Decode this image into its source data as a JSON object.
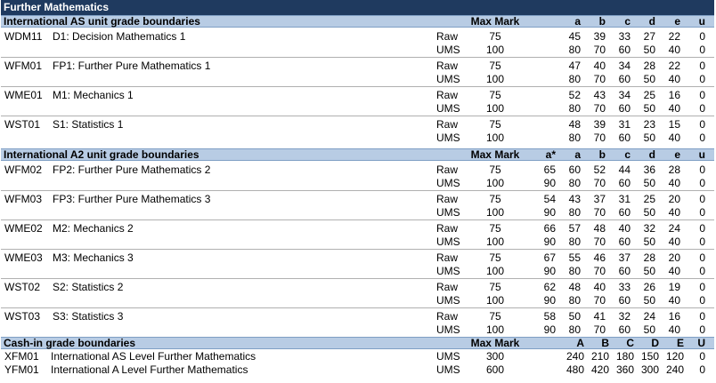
{
  "title": "Further Mathematics",
  "as_section": {
    "header": "International AS unit grade boundaries",
    "max_mark_label": "Max Mark",
    "grade_labels": [
      "a",
      "b",
      "c",
      "d",
      "e",
      "u"
    ],
    "units": [
      {
        "code": "WDM11",
        "name": "D1: Decision Mathematics 1",
        "raw": {
          "label": "Raw",
          "max": "75",
          "grades": [
            "45",
            "39",
            "33",
            "27",
            "22",
            "0"
          ]
        },
        "ums": {
          "label": "UMS",
          "max": "100",
          "grades": [
            "80",
            "70",
            "60",
            "50",
            "40",
            "0"
          ]
        }
      },
      {
        "code": "WFM01",
        "name": "FP1: Further Pure Mathematics 1",
        "raw": {
          "label": "Raw",
          "max": "75",
          "grades": [
            "47",
            "40",
            "34",
            "28",
            "22",
            "0"
          ]
        },
        "ums": {
          "label": "UMS",
          "max": "100",
          "grades": [
            "80",
            "70",
            "60",
            "50",
            "40",
            "0"
          ]
        }
      },
      {
        "code": "WME01",
        "name": "M1: Mechanics 1",
        "raw": {
          "label": "Raw",
          "max": "75",
          "grades": [
            "52",
            "43",
            "34",
            "25",
            "16",
            "0"
          ]
        },
        "ums": {
          "label": "UMS",
          "max": "100",
          "grades": [
            "80",
            "70",
            "60",
            "50",
            "40",
            "0"
          ]
        }
      },
      {
        "code": "WST01",
        "name": "S1: Statistics 1",
        "raw": {
          "label": "Raw",
          "max": "75",
          "grades": [
            "48",
            "39",
            "31",
            "23",
            "15",
            "0"
          ]
        },
        "ums": {
          "label": "UMS",
          "max": "100",
          "grades": [
            "80",
            "70",
            "60",
            "50",
            "40",
            "0"
          ]
        }
      }
    ]
  },
  "a2_section": {
    "header": "International A2 unit grade boundaries",
    "max_mark_label": "Max Mark",
    "grade_labels": [
      "a*",
      "a",
      "b",
      "c",
      "d",
      "e",
      "u"
    ],
    "units": [
      {
        "code": "WFM02",
        "name": "FP2: Further Pure Mathematics 2",
        "raw": {
          "label": "Raw",
          "max": "75",
          "grades": [
            "65",
            "60",
            "52",
            "44",
            "36",
            "28",
            "0"
          ]
        },
        "ums": {
          "label": "UMS",
          "max": "100",
          "grades": [
            "90",
            "80",
            "70",
            "60",
            "50",
            "40",
            "0"
          ]
        }
      },
      {
        "code": "WFM03",
        "name": "FP3: Further Pure Mathematics 3",
        "raw": {
          "label": "Raw",
          "max": "75",
          "grades": [
            "54",
            "43",
            "37",
            "31",
            "25",
            "20",
            "0"
          ]
        },
        "ums": {
          "label": "UMS",
          "max": "100",
          "grades": [
            "90",
            "80",
            "70",
            "60",
            "50",
            "40",
            "0"
          ]
        }
      },
      {
        "code": "WME02",
        "name": "M2: Mechanics 2",
        "raw": {
          "label": "Raw",
          "max": "75",
          "grades": [
            "66",
            "57",
            "48",
            "40",
            "32",
            "24",
            "0"
          ]
        },
        "ums": {
          "label": "UMS",
          "max": "100",
          "grades": [
            "90",
            "80",
            "70",
            "60",
            "50",
            "40",
            "0"
          ]
        }
      },
      {
        "code": "WME03",
        "name": "M3: Mechanics 3",
        "raw": {
          "label": "Raw",
          "max": "75",
          "grades": [
            "67",
            "55",
            "46",
            "37",
            "28",
            "20",
            "0"
          ]
        },
        "ums": {
          "label": "UMS",
          "max": "100",
          "grades": [
            "90",
            "80",
            "70",
            "60",
            "50",
            "40",
            "0"
          ]
        }
      },
      {
        "code": "WST02",
        "name": "S2: Statistics 2",
        "raw": {
          "label": "Raw",
          "max": "75",
          "grades": [
            "62",
            "48",
            "40",
            "33",
            "26",
            "19",
            "0"
          ]
        },
        "ums": {
          "label": "UMS",
          "max": "100",
          "grades": [
            "90",
            "80",
            "70",
            "60",
            "50",
            "40",
            "0"
          ]
        }
      },
      {
        "code": "WST03",
        "name": "S3: Statistics 3",
        "raw": {
          "label": "Raw",
          "max": "75",
          "grades": [
            "58",
            "50",
            "41",
            "32",
            "24",
            "16",
            "0"
          ]
        },
        "ums": {
          "label": "UMS",
          "max": "100",
          "grades": [
            "90",
            "80",
            "70",
            "60",
            "50",
            "40",
            "0"
          ]
        }
      }
    ]
  },
  "cashin_section": {
    "header": "Cash-in grade boundaries",
    "max_mark_label": "Max Mark",
    "grade_labels": [
      "A",
      "B",
      "C",
      "D",
      "E",
      "U"
    ],
    "rows": [
      {
        "code": "XFM01",
        "name": "International AS Level Further Mathematics",
        "type": "UMS",
        "max": "300",
        "grades": [
          "240",
          "210",
          "180",
          "150",
          "120",
          "0"
        ]
      },
      {
        "code": "YFM01",
        "name": "International A Level Further Mathematics",
        "type": "UMS",
        "max": "600",
        "grades": [
          "480",
          "420",
          "360",
          "300",
          "240",
          "0"
        ]
      }
    ]
  }
}
